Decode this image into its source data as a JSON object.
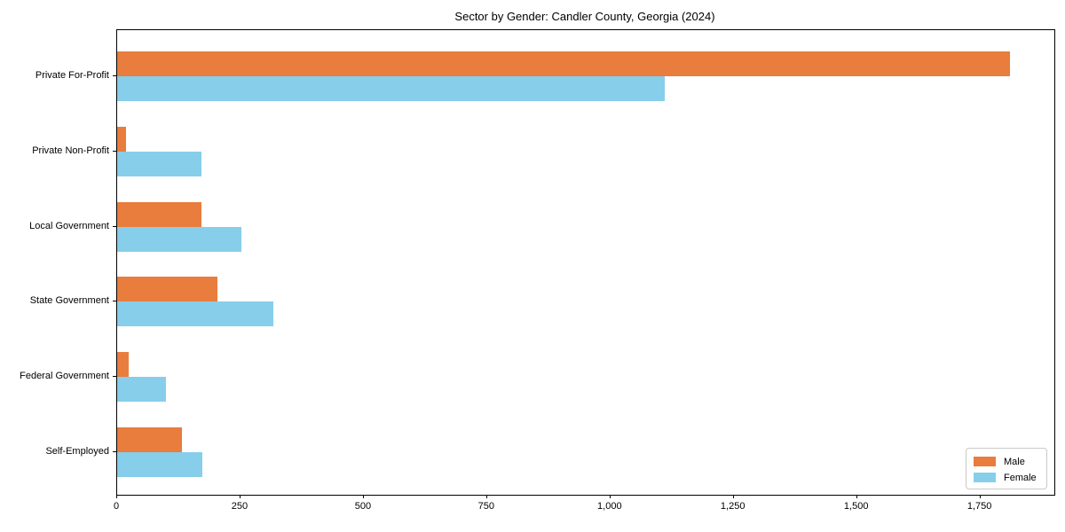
{
  "chart_data": {
    "type": "bar",
    "orientation": "horizontal",
    "title": "Sector by Gender: Candler County, Georgia (2024)",
    "categories": [
      "Private For-Profit",
      "Private Non-Profit",
      "Local Government",
      "State Government",
      "Federal Government",
      "Self-Employed"
    ],
    "series": [
      {
        "name": "Male",
        "color": "#E87D3D",
        "values": [
          1810,
          18,
          171,
          203,
          24,
          132
        ]
      },
      {
        "name": "Female",
        "color": "#87CEEB",
        "values": [
          1110,
          171,
          252,
          317,
          98,
          173
        ]
      }
    ],
    "xlabel": "",
    "ylabel": "",
    "xlim": [
      0,
      1900
    ],
    "xticks": {
      "values": [
        0,
        250,
        500,
        750,
        1000,
        1250,
        1500,
        1750
      ],
      "labels": [
        "0",
        "250",
        "500",
        "750",
        "1,000",
        "1,250",
        "1,500",
        "1,750"
      ]
    },
    "grid": false,
    "legend": {
      "position": "lower right"
    }
  }
}
